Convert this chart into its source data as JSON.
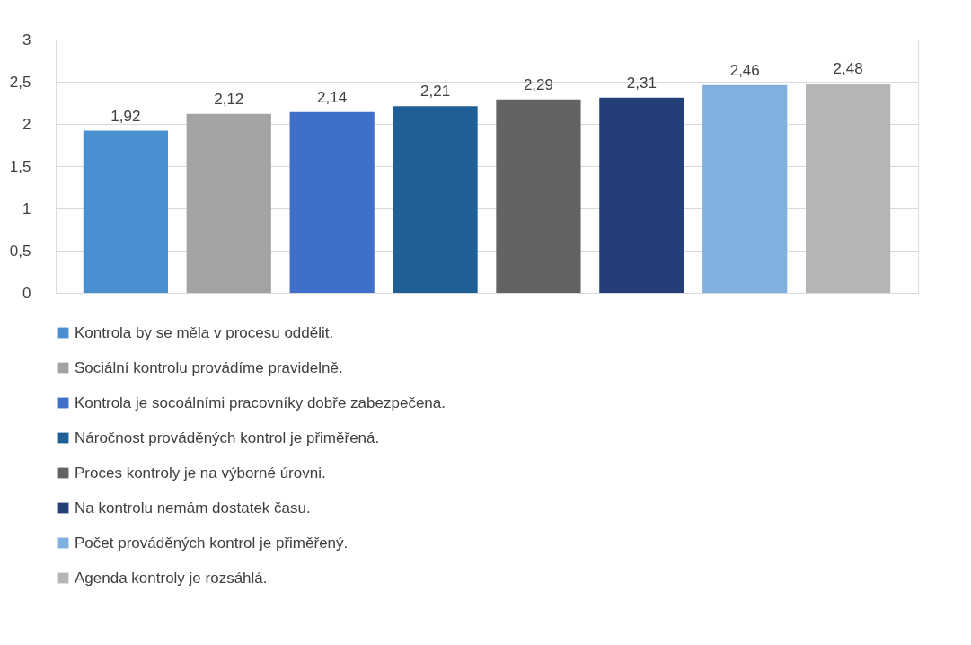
{
  "chart_data": {
    "type": "bar",
    "categories": [
      null
    ],
    "series": [
      {
        "name": "Kontrola by se měla v procesu oddělit.",
        "color": "#4a90d0",
        "values": [
          1.92
        ],
        "value_labels": [
          "1,92"
        ]
      },
      {
        "name": "Sociální kontrolu provádíme pravidelně.",
        "color": "#a3a3a3",
        "values": [
          2.12
        ],
        "value_labels": [
          "2,12"
        ]
      },
      {
        "name": "Kontrola je socoálními pracovníky dobře zabezpečena.",
        "color": "#3f6fc8",
        "values": [
          2.14
        ],
        "value_labels": [
          "2,14"
        ]
      },
      {
        "name": "Náročnost prováděných kontrol je přiměřená.",
        "color": "#1f5e96",
        "values": [
          2.21
        ],
        "value_labels": [
          "2,21"
        ]
      },
      {
        "name": "Proces kontroly je na výborné úrovni.",
        "color": "#636363",
        "values": [
          2.29
        ],
        "value_labels": [
          "2,29"
        ]
      },
      {
        "name": "Na kontrolu nemám dostatek času.",
        "color": "#243f78",
        "values": [
          2.31
        ],
        "value_labels": [
          "2,31"
        ]
      },
      {
        "name": "Počet prováděných kontrol je přiměřený.",
        "color": "#7fb0e0",
        "values": [
          2.46
        ],
        "value_labels": [
          "2,46"
        ]
      },
      {
        "name": "Agenda kontroly je rozsáhlá.",
        "color": "#b5b5b5",
        "values": [
          2.48
        ],
        "value_labels": [
          "2,48"
        ]
      }
    ],
    "ylim": [
      0,
      3
    ],
    "yticks": [
      0,
      {
        "value": 0.5,
        "label": "0,5"
      },
      1,
      {
        "value": 1.5,
        "label": "1,5"
      },
      2,
      {
        "value": 2.5,
        "label": "2,5"
      },
      3
    ],
    "grid": "y",
    "legend": "bottom",
    "tick_labels": "y"
  }
}
